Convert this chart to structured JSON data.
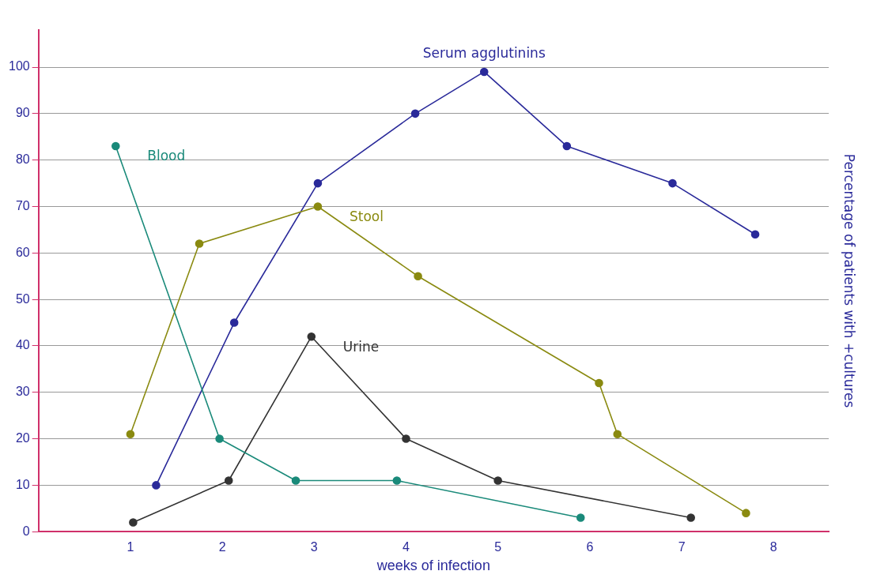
{
  "chart_data": {
    "type": "line",
    "xlabel": "weeks of infection",
    "ylabel": "Percentage of patients with +cultures",
    "xlim": [
      0,
      8.6
    ],
    "xticks": [
      1,
      2,
      3,
      4,
      5,
      6,
      7,
      8
    ],
    "ylim": [
      0,
      108
    ],
    "yticks": [
      0,
      10,
      20,
      30,
      40,
      50,
      60,
      70,
      80,
      90,
      100
    ],
    "grid": "y",
    "marker": "circle",
    "line_style": "solid",
    "legend": false,
    "series": [
      {
        "name": "Blood",
        "color": "#1a8a7a",
        "x": [
          0.84,
          1.97,
          2.8,
          3.9,
          5.9
        ],
        "values": [
          83,
          20,
          11,
          11,
          3
        ]
      },
      {
        "name": "Stool",
        "color": "#8a8a10",
        "x": [
          1,
          1.75,
          3.04,
          4.13,
          6.1,
          6.3,
          7.7
        ],
        "values": [
          21,
          62,
          70,
          55,
          32,
          21,
          4
        ]
      },
      {
        "name": "Serum agglutinins",
        "color": "#2a2a9a",
        "x": [
          1.28,
          2.13,
          3.04,
          4.1,
          4.85,
          5.75,
          6.9,
          7.8
        ],
        "values": [
          10,
          45,
          75,
          90,
          99,
          83,
          75,
          64
        ]
      },
      {
        "name": "Urine",
        "color": "#333333",
        "x": [
          1.03,
          2.07,
          2.97,
          4,
          5,
          7.1
        ],
        "values": [
          2,
          11,
          42,
          20,
          11,
          3
        ]
      }
    ]
  }
}
